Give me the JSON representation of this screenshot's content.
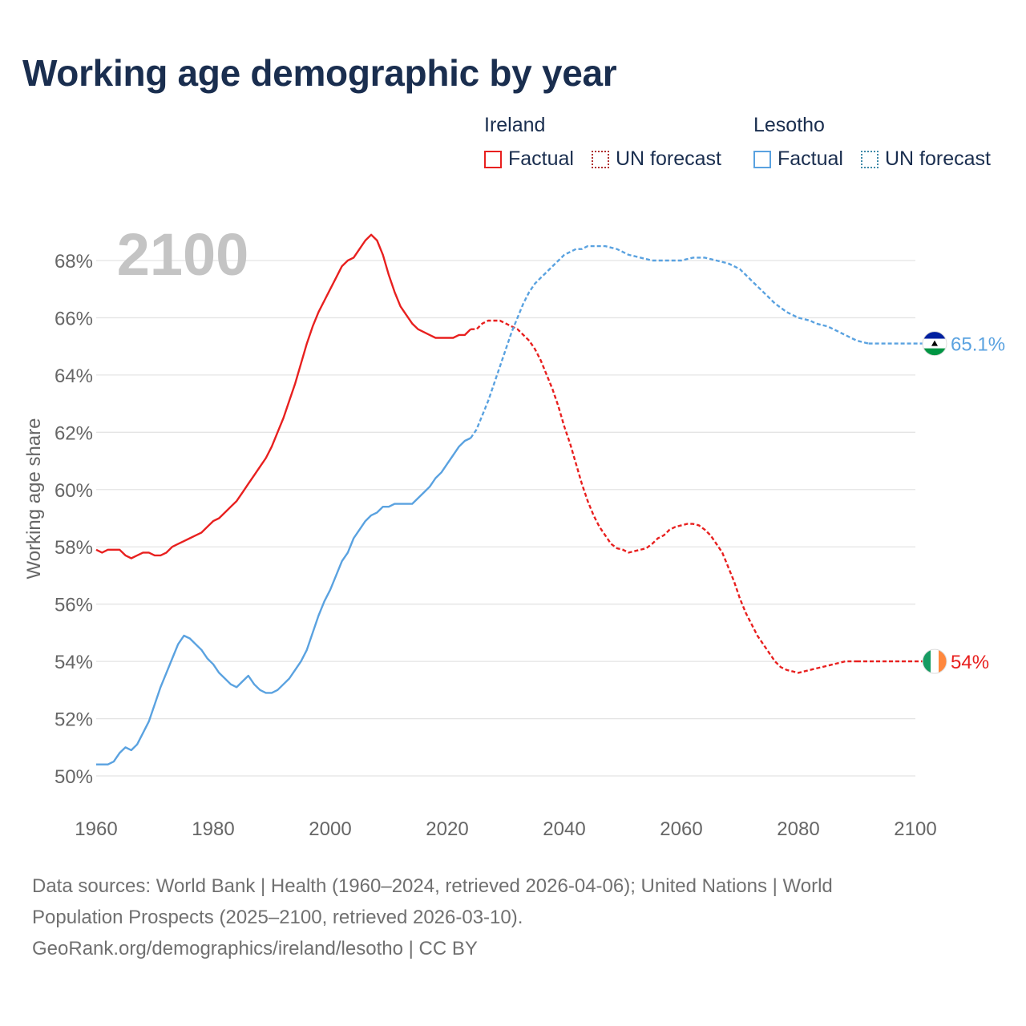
{
  "title": "Working age demographic by year",
  "year_watermark": "2100",
  "legend": {
    "groups": [
      {
        "name": "Ireland",
        "factual": "Factual",
        "forecast": "UN forecast",
        "color": "#e8201f"
      },
      {
        "name": "Lesotho",
        "factual": "Factual",
        "forecast": "UN forecast",
        "color": "#5aa2e0"
      }
    ]
  },
  "footer": {
    "line1": "Data sources: World Bank | Health (1960–2024, retrieved 2026-04-06); United Nations | World",
    "line2": "Population Prospects (2025–2100, retrieved 2026-03-10).",
    "line3": "GeoRank.org/demographics/ireland/lesotho | CC BY"
  },
  "chart_data": {
    "type": "line",
    "title": "Working age demographic by year",
    "xlabel": "",
    "ylabel": "Working age share",
    "xlim": [
      1960,
      2100
    ],
    "ylim": [
      50,
      68
    ],
    "x_ticks": [
      "1960",
      "1980",
      "2000",
      "2020",
      "2040",
      "2060",
      "2080",
      "2100"
    ],
    "y_ticks": [
      "50%",
      "52%",
      "54%",
      "56%",
      "58%",
      "60%",
      "62%",
      "64%",
      "66%",
      "68%"
    ],
    "factual_range": [
      1960,
      2024
    ],
    "forecast_range": [
      2025,
      2100
    ],
    "series": [
      {
        "name": "Ireland",
        "color": "#e8201f",
        "end_label": "54%",
        "points": [
          [
            1960,
            57.9
          ],
          [
            1961,
            57.8
          ],
          [
            1962,
            57.9
          ],
          [
            1963,
            57.9
          ],
          [
            1964,
            57.9
          ],
          [
            1965,
            57.7
          ],
          [
            1966,
            57.6
          ],
          [
            1967,
            57.7
          ],
          [
            1968,
            57.8
          ],
          [
            1969,
            57.8
          ],
          [
            1970,
            57.7
          ],
          [
            1971,
            57.7
          ],
          [
            1972,
            57.8
          ],
          [
            1973,
            58.0
          ],
          [
            1974,
            58.1
          ],
          [
            1975,
            58.2
          ],
          [
            1976,
            58.3
          ],
          [
            1977,
            58.4
          ],
          [
            1978,
            58.5
          ],
          [
            1979,
            58.7
          ],
          [
            1980,
            58.9
          ],
          [
            1981,
            59.0
          ],
          [
            1982,
            59.2
          ],
          [
            1983,
            59.4
          ],
          [
            1984,
            59.6
          ],
          [
            1985,
            59.9
          ],
          [
            1986,
            60.2
          ],
          [
            1987,
            60.5
          ],
          [
            1988,
            60.8
          ],
          [
            1989,
            61.1
          ],
          [
            1990,
            61.5
          ],
          [
            1991,
            62.0
          ],
          [
            1992,
            62.5
          ],
          [
            1993,
            63.1
          ],
          [
            1994,
            63.7
          ],
          [
            1995,
            64.4
          ],
          [
            1996,
            65.1
          ],
          [
            1997,
            65.7
          ],
          [
            1998,
            66.2
          ],
          [
            1999,
            66.6
          ],
          [
            2000,
            67.0
          ],
          [
            2001,
            67.4
          ],
          [
            2002,
            67.8
          ],
          [
            2003,
            68.0
          ],
          [
            2004,
            68.1
          ],
          [
            2005,
            68.4
          ],
          [
            2006,
            68.7
          ],
          [
            2007,
            68.9
          ],
          [
            2008,
            68.7
          ],
          [
            2009,
            68.2
          ],
          [
            2010,
            67.5
          ],
          [
            2011,
            66.9
          ],
          [
            2012,
            66.4
          ],
          [
            2013,
            66.1
          ],
          [
            2014,
            65.8
          ],
          [
            2015,
            65.6
          ],
          [
            2016,
            65.5
          ],
          [
            2017,
            65.4
          ],
          [
            2018,
            65.3
          ],
          [
            2019,
            65.3
          ],
          [
            2020,
            65.3
          ],
          [
            2021,
            65.3
          ],
          [
            2022,
            65.4
          ],
          [
            2023,
            65.4
          ],
          [
            2024,
            65.6
          ],
          [
            2025,
            65.6
          ],
          [
            2026,
            65.8
          ],
          [
            2027,
            65.9
          ],
          [
            2028,
            65.9
          ],
          [
            2029,
            65.9
          ],
          [
            2030,
            65.8
          ],
          [
            2031,
            65.7
          ],
          [
            2032,
            65.6
          ],
          [
            2033,
            65.4
          ],
          [
            2034,
            65.2
          ],
          [
            2035,
            64.9
          ],
          [
            2036,
            64.5
          ],
          [
            2037,
            64.0
          ],
          [
            2038,
            63.5
          ],
          [
            2039,
            62.9
          ],
          [
            2040,
            62.2
          ],
          [
            2041,
            61.6
          ],
          [
            2042,
            60.9
          ],
          [
            2043,
            60.2
          ],
          [
            2044,
            59.6
          ],
          [
            2045,
            59.1
          ],
          [
            2046,
            58.7
          ],
          [
            2047,
            58.4
          ],
          [
            2048,
            58.1
          ],
          [
            2049,
            57.95
          ],
          [
            2050,
            57.9
          ],
          [
            2051,
            57.8
          ],
          [
            2052,
            57.85
          ],
          [
            2053,
            57.9
          ],
          [
            2054,
            57.95
          ],
          [
            2055,
            58.1
          ],
          [
            2056,
            58.3
          ],
          [
            2057,
            58.4
          ],
          [
            2058,
            58.6
          ],
          [
            2059,
            58.7
          ],
          [
            2060,
            58.75
          ],
          [
            2061,
            58.8
          ],
          [
            2062,
            58.8
          ],
          [
            2063,
            58.75
          ],
          [
            2064,
            58.6
          ],
          [
            2065,
            58.4
          ],
          [
            2066,
            58.1
          ],
          [
            2067,
            57.8
          ],
          [
            2068,
            57.3
          ],
          [
            2069,
            56.8
          ],
          [
            2070,
            56.2
          ],
          [
            2071,
            55.7
          ],
          [
            2072,
            55.3
          ],
          [
            2073,
            54.9
          ],
          [
            2074,
            54.6
          ],
          [
            2075,
            54.3
          ],
          [
            2076,
            54.0
          ],
          [
            2077,
            53.8
          ],
          [
            2078,
            53.7
          ],
          [
            2079,
            53.65
          ],
          [
            2080,
            53.6
          ],
          [
            2081,
            53.65
          ],
          [
            2082,
            53.7
          ],
          [
            2083,
            53.75
          ],
          [
            2084,
            53.8
          ],
          [
            2085,
            53.85
          ],
          [
            2086,
            53.9
          ],
          [
            2087,
            53.95
          ],
          [
            2088,
            54.0
          ],
          [
            2089,
            54.0
          ],
          [
            2090,
            54.0
          ]
        ]
      },
      {
        "name": "Lesotho",
        "color": "#5aa2e0",
        "end_label": "65.1%",
        "points": [
          [
            1960,
            50.4
          ],
          [
            1961,
            50.4
          ],
          [
            1962,
            50.4
          ],
          [
            1963,
            50.5
          ],
          [
            1964,
            50.8
          ],
          [
            1965,
            51.0
          ],
          [
            1966,
            50.9
          ],
          [
            1967,
            51.1
          ],
          [
            1968,
            51.5
          ],
          [
            1969,
            51.9
          ],
          [
            1970,
            52.5
          ],
          [
            1971,
            53.1
          ],
          [
            1972,
            53.6
          ],
          [
            1973,
            54.1
          ],
          [
            1974,
            54.6
          ],
          [
            1975,
            54.9
          ],
          [
            1976,
            54.8
          ],
          [
            1977,
            54.6
          ],
          [
            1978,
            54.4
          ],
          [
            1979,
            54.1
          ],
          [
            1980,
            53.9
          ],
          [
            1981,
            53.6
          ],
          [
            1982,
            53.4
          ],
          [
            1983,
            53.2
          ],
          [
            1984,
            53.1
          ],
          [
            1985,
            53.3
          ],
          [
            1986,
            53.5
          ],
          [
            1987,
            53.2
          ],
          [
            1988,
            53.0
          ],
          [
            1989,
            52.9
          ],
          [
            1990,
            52.9
          ],
          [
            1991,
            53.0
          ],
          [
            1992,
            53.2
          ],
          [
            1993,
            53.4
          ],
          [
            1994,
            53.7
          ],
          [
            1995,
            54.0
          ],
          [
            1996,
            54.4
          ],
          [
            1997,
            55.0
          ],
          [
            1998,
            55.6
          ],
          [
            1999,
            56.1
          ],
          [
            2000,
            56.5
          ],
          [
            2001,
            57.0
          ],
          [
            2002,
            57.5
          ],
          [
            2003,
            57.8
          ],
          [
            2004,
            58.3
          ],
          [
            2005,
            58.6
          ],
          [
            2006,
            58.9
          ],
          [
            2007,
            59.1
          ],
          [
            2008,
            59.2
          ],
          [
            2009,
            59.4
          ],
          [
            2010,
            59.4
          ],
          [
            2011,
            59.5
          ],
          [
            2012,
            59.5
          ],
          [
            2013,
            59.5
          ],
          [
            2014,
            59.5
          ],
          [
            2015,
            59.7
          ],
          [
            2016,
            59.9
          ],
          [
            2017,
            60.1
          ],
          [
            2018,
            60.4
          ],
          [
            2019,
            60.6
          ],
          [
            2020,
            60.9
          ],
          [
            2021,
            61.2
          ],
          [
            2022,
            61.5
          ],
          [
            2023,
            61.7
          ],
          [
            2024,
            61.8
          ],
          [
            2025,
            62.1
          ],
          [
            2026,
            62.6
          ],
          [
            2027,
            63.1
          ],
          [
            2028,
            63.7
          ],
          [
            2029,
            64.3
          ],
          [
            2030,
            64.9
          ],
          [
            2031,
            65.5
          ],
          [
            2032,
            66.0
          ],
          [
            2033,
            66.5
          ],
          [
            2034,
            66.9
          ],
          [
            2035,
            67.2
          ],
          [
            2036,
            67.4
          ],
          [
            2037,
            67.6
          ],
          [
            2038,
            67.8
          ],
          [
            2039,
            68.0
          ],
          [
            2040,
            68.2
          ],
          [
            2041,
            68.3
          ],
          [
            2042,
            68.4
          ],
          [
            2043,
            68.4
          ],
          [
            2044,
            68.5
          ],
          [
            2045,
            68.5
          ],
          [
            2046,
            68.5
          ],
          [
            2047,
            68.5
          ],
          [
            2048,
            68.45
          ],
          [
            2049,
            68.4
          ],
          [
            2050,
            68.3
          ],
          [
            2051,
            68.2
          ],
          [
            2052,
            68.15
          ],
          [
            2053,
            68.1
          ],
          [
            2054,
            68.05
          ],
          [
            2055,
            68.0
          ],
          [
            2056,
            68.0
          ],
          [
            2057,
            68.0
          ],
          [
            2058,
            68.0
          ],
          [
            2059,
            68.0
          ],
          [
            2060,
            68.0
          ],
          [
            2061,
            68.05
          ],
          [
            2062,
            68.1
          ],
          [
            2063,
            68.1
          ],
          [
            2064,
            68.1
          ],
          [
            2065,
            68.05
          ],
          [
            2066,
            68.0
          ],
          [
            2067,
            67.95
          ],
          [
            2068,
            67.9
          ],
          [
            2069,
            67.8
          ],
          [
            2070,
            67.7
          ],
          [
            2071,
            67.5
          ],
          [
            2072,
            67.3
          ],
          [
            2073,
            67.1
          ],
          [
            2074,
            66.9
          ],
          [
            2075,
            66.7
          ],
          [
            2076,
            66.5
          ],
          [
            2077,
            66.35
          ],
          [
            2078,
            66.2
          ],
          [
            2079,
            66.1
          ],
          [
            2080,
            66.0
          ],
          [
            2081,
            65.95
          ],
          [
            2082,
            65.9
          ],
          [
            2083,
            65.8
          ],
          [
            2084,
            65.75
          ],
          [
            2085,
            65.7
          ],
          [
            2086,
            65.6
          ],
          [
            2087,
            65.5
          ],
          [
            2088,
            65.4
          ],
          [
            2089,
            65.3
          ],
          [
            2090,
            65.2
          ],
          [
            2091,
            65.15
          ],
          [
            2092,
            65.1
          ]
        ]
      }
    ]
  }
}
